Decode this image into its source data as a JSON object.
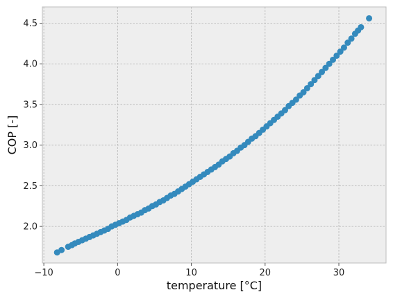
{
  "chart_data": {
    "type": "scatter",
    "title": "",
    "xlabel": "temperature [°C]",
    "ylabel": "COP [-]",
    "xlim": [
      -10.2,
      36.4
    ],
    "ylim": [
      1.55,
      4.7
    ],
    "x_ticks": [
      -10,
      0,
      10,
      20,
      30
    ],
    "x_tick_labels": [
      "−10",
      "0",
      "10",
      "20",
      "30"
    ],
    "y_ticks": [
      2.0,
      2.5,
      3.0,
      3.5,
      4.0,
      4.5
    ],
    "y_tick_labels": [
      "2.0",
      "2.5",
      "3.0",
      "3.5",
      "4.0",
      "4.5"
    ],
    "grid": true,
    "legend": "none",
    "colors": {
      "marker": "#348abd",
      "plot_background": "#eeeeee",
      "grid": "#b2b2b2",
      "spine": "#bcbcbc"
    },
    "series": [
      {
        "points": [
          [
            -8.2,
            1.68
          ],
          [
            -7.6,
            1.71
          ],
          [
            -6.7,
            1.75
          ],
          [
            -6.2,
            1.77
          ],
          [
            -5.8,
            1.79
          ],
          [
            -5.3,
            1.81
          ],
          [
            -4.8,
            1.83
          ],
          [
            -4.3,
            1.85
          ],
          [
            -3.8,
            1.87
          ],
          [
            -3.3,
            1.89
          ],
          [
            -2.8,
            1.91
          ],
          [
            -2.3,
            1.93
          ],
          [
            -1.8,
            1.95
          ],
          [
            -1.3,
            1.97
          ],
          [
            -0.8,
            2.0
          ],
          [
            -0.3,
            2.02
          ],
          [
            0.2,
            2.04
          ],
          [
            0.7,
            2.06
          ],
          [
            1.2,
            2.08
          ],
          [
            1.7,
            2.11
          ],
          [
            2.2,
            2.13
          ],
          [
            2.7,
            2.15
          ],
          [
            3.2,
            2.17
          ],
          [
            3.7,
            2.2
          ],
          [
            4.2,
            2.22
          ],
          [
            4.7,
            2.25
          ],
          [
            5.2,
            2.27
          ],
          [
            5.7,
            2.3
          ],
          [
            6.2,
            2.32
          ],
          [
            6.7,
            2.35
          ],
          [
            7.2,
            2.38
          ],
          [
            7.7,
            2.4
          ],
          [
            8.2,
            2.43
          ],
          [
            8.7,
            2.46
          ],
          [
            9.2,
            2.49
          ],
          [
            9.7,
            2.52
          ],
          [
            10.2,
            2.55
          ],
          [
            10.7,
            2.58
          ],
          [
            11.2,
            2.61
          ],
          [
            11.7,
            2.64
          ],
          [
            12.2,
            2.67
          ],
          [
            12.7,
            2.7
          ],
          [
            13.2,
            2.73
          ],
          [
            13.7,
            2.76
          ],
          [
            14.2,
            2.8
          ],
          [
            14.7,
            2.83
          ],
          [
            15.2,
            2.86
          ],
          [
            15.7,
            2.9
          ],
          [
            16.2,
            2.93
          ],
          [
            16.7,
            2.97
          ],
          [
            17.2,
            3.0
          ],
          [
            17.7,
            3.04
          ],
          [
            18.2,
            3.08
          ],
          [
            18.7,
            3.11
          ],
          [
            19.2,
            3.15
          ],
          [
            19.7,
            3.19
          ],
          [
            20.2,
            3.23
          ],
          [
            20.7,
            3.27
          ],
          [
            21.2,
            3.31
          ],
          [
            21.7,
            3.35
          ],
          [
            22.2,
            3.39
          ],
          [
            22.7,
            3.43
          ],
          [
            23.2,
            3.48
          ],
          [
            23.7,
            3.52
          ],
          [
            24.2,
            3.56
          ],
          [
            24.7,
            3.61
          ],
          [
            25.2,
            3.65
          ],
          [
            25.7,
            3.7
          ],
          [
            26.2,
            3.75
          ],
          [
            26.7,
            3.8
          ],
          [
            27.2,
            3.85
          ],
          [
            27.7,
            3.9
          ],
          [
            28.2,
            3.95
          ],
          [
            28.7,
            4.0
          ],
          [
            29.2,
            4.05
          ],
          [
            29.7,
            4.1
          ],
          [
            30.2,
            4.15
          ],
          [
            30.7,
            4.2
          ],
          [
            31.2,
            4.26
          ],
          [
            31.7,
            4.31
          ],
          [
            32.2,
            4.37
          ],
          [
            32.6,
            4.41
          ],
          [
            33.0,
            4.45
          ],
          [
            34.1,
            4.56
          ]
        ]
      }
    ]
  }
}
